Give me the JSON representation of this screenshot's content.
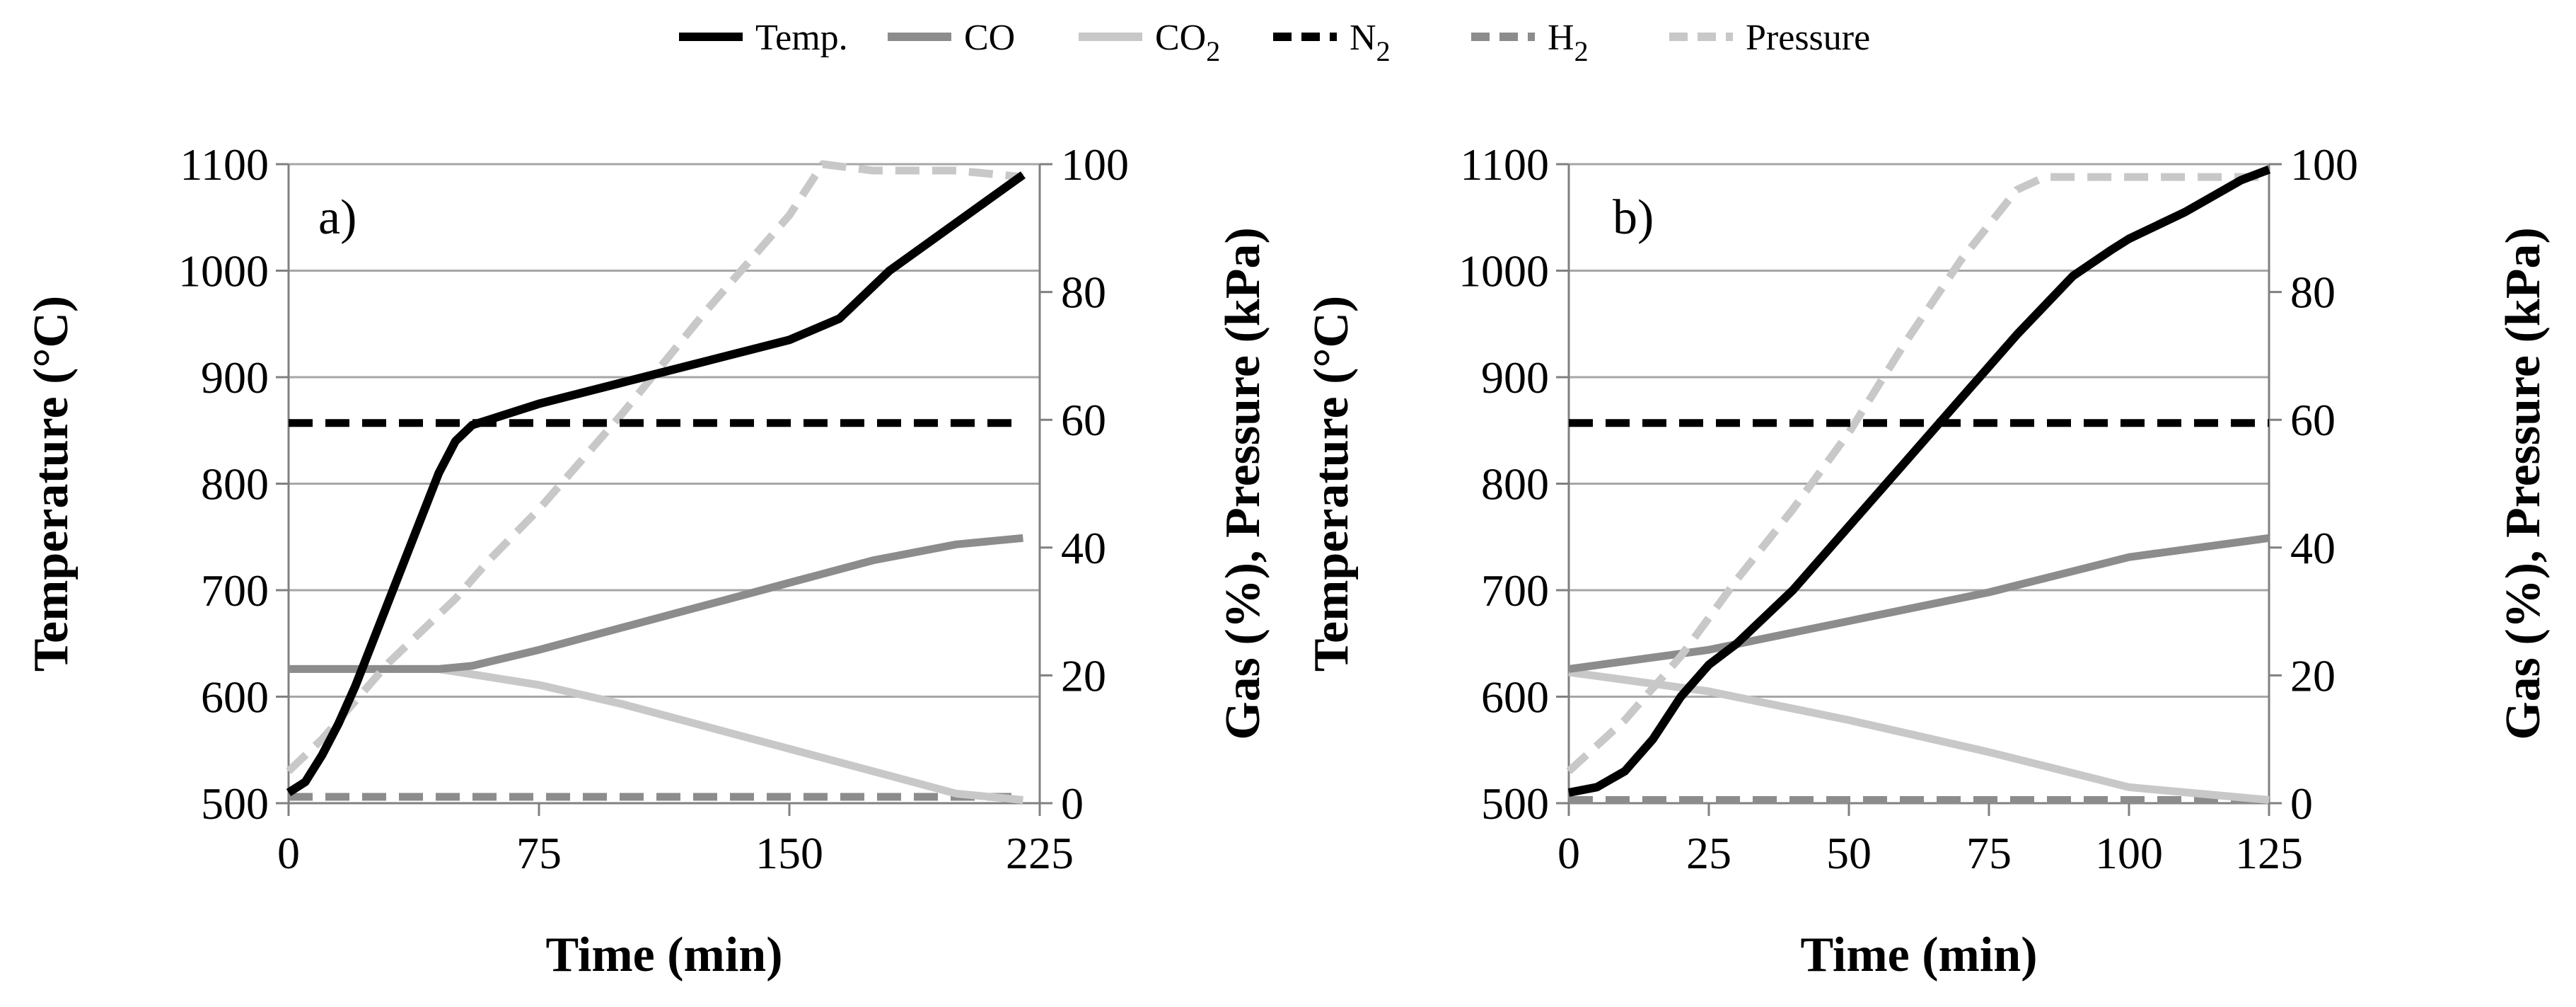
{
  "legend": [
    {
      "key": "temp",
      "label": "Temp.",
      "sub": "",
      "color": "#000000",
      "dashed": false
    },
    {
      "key": "co",
      "label": "CO",
      "sub": "",
      "color": "#8c8c8c",
      "dashed": false
    },
    {
      "key": "co2",
      "label": "CO",
      "sub": "2",
      "color": "#c8c8c8",
      "dashed": false
    },
    {
      "key": "n2",
      "label": "N",
      "sub": "2",
      "color": "#000000",
      "dashed": true
    },
    {
      "key": "h2",
      "label": "H",
      "sub": "2",
      "color": "#8c8c8c",
      "dashed": true
    },
    {
      "key": "pressure",
      "label": "Pressure",
      "sub": "",
      "color": "#c8c8c8",
      "dashed": true
    }
  ],
  "chart_data": [
    {
      "type": "line",
      "panel_label": "a)",
      "xlabel": "Time (min)",
      "ylabel_left": "Temperature (°C)",
      "ylabel_right": "Gas (%), Pressure (kPa)",
      "xlim": [
        0,
        225
      ],
      "ylim_left": [
        500,
        1100
      ],
      "ylim_right": [
        0,
        100
      ],
      "xticks": [
        0,
        75,
        150,
        225
      ],
      "yticks_left": [
        500,
        600,
        700,
        800,
        900,
        1000,
        1100
      ],
      "yticks_right": [
        0,
        20,
        40,
        60,
        80,
        100
      ],
      "series": [
        {
          "key": "temp",
          "name": "Temp.",
          "axis": "left",
          "x": [
            0,
            5,
            10,
            15,
            20,
            25,
            30,
            35,
            40,
            45,
            50,
            55,
            60,
            75,
            100,
            125,
            150,
            165,
            180,
            200,
            220
          ],
          "y": [
            510,
            520,
            545,
            575,
            610,
            650,
            690,
            730,
            770,
            810,
            840,
            855,
            860,
            875,
            895,
            915,
            935,
            955,
            1000,
            1045,
            1090
          ]
        },
        {
          "key": "co",
          "name": "CO",
          "axis": "right",
          "x": [
            0,
            45,
            55,
            75,
            100,
            125,
            150,
            175,
            200,
            220
          ],
          "y": [
            21,
            21,
            21.5,
            24,
            27.5,
            31,
            34.5,
            38,
            40.5,
            41.5
          ]
        },
        {
          "key": "co2",
          "name": "CO2",
          "axis": "right",
          "x": [
            0,
            45,
            75,
            100,
            125,
            150,
            175,
            200,
            220
          ],
          "y": [
            21,
            21,
            18.5,
            15.5,
            12,
            8.5,
            5,
            1.5,
            0.5
          ]
        },
        {
          "key": "n2",
          "name": "N2",
          "axis": "right",
          "x": [
            0,
            220
          ],
          "y": [
            59.5,
            59.5
          ]
        },
        {
          "key": "h2",
          "name": "H2",
          "axis": "right",
          "x": [
            0,
            220
          ],
          "y": [
            1,
            1
          ]
        },
        {
          "key": "pressure",
          "name": "Pressure",
          "axis": "right",
          "x": [
            0,
            10,
            20,
            30,
            40,
            50,
            60,
            75,
            100,
            125,
            150,
            160,
            175,
            200,
            220
          ],
          "y": [
            5,
            10,
            16,
            22,
            27,
            32,
            38,
            46,
            61,
            77,
            92,
            100,
            99,
            99,
            98
          ]
        }
      ]
    },
    {
      "type": "line",
      "panel_label": "b)",
      "xlabel": "Time (min)",
      "ylabel_left": "Temperature (°C)",
      "ylabel_right": "Gas (%), Pressure (kPa)",
      "xlim": [
        0,
        125
      ],
      "ylim_left": [
        500,
        1100
      ],
      "ylim_right": [
        0,
        100
      ],
      "xticks": [
        0,
        25,
        50,
        75,
        100,
        125
      ],
      "yticks_left": [
        500,
        600,
        700,
        800,
        900,
        1000,
        1100
      ],
      "yticks_right": [
        0,
        20,
        40,
        60,
        80,
        100
      ],
      "series": [
        {
          "key": "temp",
          "name": "Temp.",
          "axis": "left",
          "x": [
            0,
            5,
            10,
            15,
            20,
            25,
            30,
            40,
            50,
            60,
            70,
            80,
            90,
            97,
            100,
            110,
            120,
            125
          ],
          "y": [
            510,
            515,
            530,
            560,
            600,
            630,
            650,
            700,
            760,
            820,
            880,
            940,
            995,
            1020,
            1030,
            1055,
            1085,
            1095
          ]
        },
        {
          "key": "co",
          "name": "CO",
          "axis": "right",
          "x": [
            0,
            25,
            50,
            75,
            100,
            125
          ],
          "y": [
            21,
            24,
            28.5,
            33,
            38.5,
            41.5
          ]
        },
        {
          "key": "co2",
          "name": "CO2",
          "axis": "right",
          "x": [
            0,
            25,
            50,
            75,
            100,
            125
          ],
          "y": [
            20.5,
            17.5,
            13,
            8,
            2.5,
            0.5
          ]
        },
        {
          "key": "n2",
          "name": "N2",
          "axis": "right",
          "x": [
            0,
            125
          ],
          "y": [
            59.5,
            59.5
          ]
        },
        {
          "key": "h2",
          "name": "H2",
          "axis": "right",
          "x": [
            0,
            125
          ],
          "y": [
            0.5,
            0.5
          ]
        },
        {
          "key": "pressure",
          "name": "Pressure",
          "axis": "right",
          "x": [
            0,
            10,
            20,
            30,
            40,
            50,
            60,
            70,
            80,
            85,
            125
          ],
          "y": [
            5,
            13,
            23,
            35,
            46,
            58,
            72,
            85,
            96,
            98,
            98
          ]
        }
      ]
    }
  ]
}
